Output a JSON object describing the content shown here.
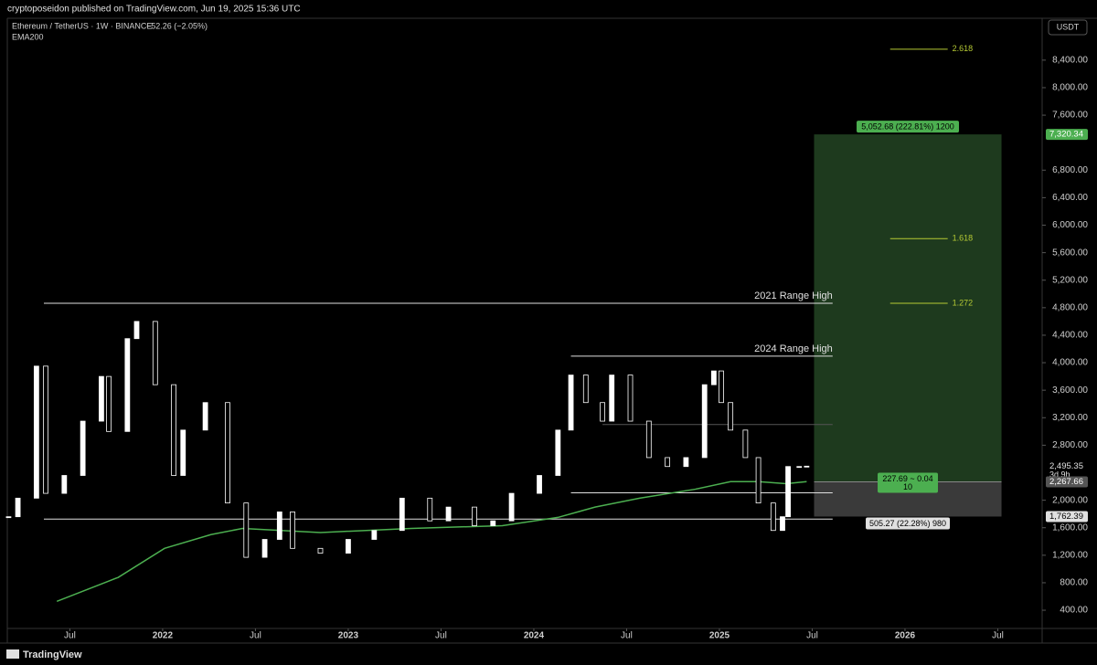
{
  "header": {
    "publisher": "cryptoposeidon published on TradingView.com, Jun 19, 2025 15:36 UTC",
    "symbol": "Ethereum / TetherUS · 1W · BINANCE",
    "change": "−52.26 (−2.05%)",
    "indicator": "EMA200",
    "currency": "USDT",
    "footer": "TradingView"
  },
  "chart_data": {
    "type": "candlestick",
    "x": [
      2021.17,
      2021.22,
      2021.32,
      2021.37,
      2021.47,
      2021.57,
      2021.67,
      2021.71,
      2021.81,
      2021.86,
      2021.96,
      2022.06,
      2022.11,
      2022.23,
      2022.35,
      2022.45,
      2022.55,
      2022.63,
      2022.7,
      2022.85,
      2023.0,
      2023.14,
      2023.29,
      2023.44,
      2023.54,
      2023.68,
      2023.78,
      2023.88,
      2024.03,
      2024.13,
      2024.2,
      2024.28,
      2024.37,
      2024.42,
      2024.52,
      2024.62,
      2024.72,
      2024.82,
      2024.92,
      2024.97,
      2025.01,
      2025.06,
      2025.14,
      2025.21,
      2025.29,
      2025.34,
      2025.37,
      2025.43,
      2025.47
    ],
    "close": [
      1760,
      2030,
      3950,
      2100,
      2360,
      3150,
      3800,
      3000,
      4350,
      4600,
      3680,
      2360,
      3020,
      3420,
      1960,
      1170,
      1430,
      1830,
      1300,
      1230,
      1430,
      1560,
      2030,
      1700,
      1900,
      1630,
      1700,
      2100,
      2360,
      3020,
      3820,
      3420,
      3150,
      3820,
      3150,
      2620,
      2490,
      2620,
      3680,
      3880,
      3420,
      3020,
      2620,
      1960,
      1560,
      1760,
      2490,
      2490,
      2495.35
    ],
    "up_color": "#ffffff",
    "down_color": "#000000",
    "ema": {
      "name": "EMA200",
      "color": "#4caf50",
      "x": [
        2021.43,
        2021.76,
        2022.01,
        2022.26,
        2022.43,
        2022.85,
        2023.34,
        2023.83,
        2024.13,
        2024.33,
        2024.57,
        2024.87,
        2025.06,
        2025.21,
        2025.36,
        2025.47
      ],
      "values": [
        530,
        877,
        1300,
        1500,
        1590,
        1530,
        1590,
        1630,
        1750,
        1900,
        2030,
        2160,
        2270,
        2270,
        2240,
        2270
      ]
    },
    "levels": [
      {
        "label": "2021 Range High",
        "value": 4864,
        "x": [
          2021.36,
          2025.61
        ]
      },
      {
        "label": "2024 Range High",
        "value": 4095,
        "x": [
          2024.2,
          2025.61
        ]
      },
      {
        "value": 3100,
        "x": [
          2024.37,
          2025.61
        ]
      },
      {
        "value": 2108,
        "x": [
          2024.2,
          2025.61
        ]
      },
      {
        "value": 1725,
        "x": [
          2021.36,
          2025.61
        ]
      }
    ],
    "fib": {
      "x": [
        2025.92,
        2026.23
      ],
      "color": "#b5c934",
      "lines": [
        {
          "label": "2.618",
          "value": 8559
        },
        {
          "label": "1.618",
          "value": 5804
        },
        {
          "label": "1.272",
          "value": 4864
        }
      ]
    },
    "position": {
      "x": [
        2025.51,
        2026.52
      ],
      "entry": 2267.66,
      "target": 7320.34,
      "stop": 1762.39,
      "target_label": "5,052.68 (222.81%) 1200",
      "center_label": [
        "227.69 ~ 0.04",
        "10"
      ],
      "stop_label": "505.27 (22.28%) 980"
    },
    "price_labels": [
      {
        "value": 7320.34,
        "label": "7,320.34",
        "color": "#4caf50"
      },
      {
        "value": 2495.35,
        "label": "2,495.35",
        "sub": "3d 9h",
        "color": "#000000"
      },
      {
        "value": 2267.66,
        "label": "2,267.66",
        "color": "#555555"
      },
      {
        "value": 1762.39,
        "label": "1,762.39",
        "color": "#e0e0e0"
      }
    ],
    "xlim": [
      2021.163,
      2026.739
    ],
    "ylim": [
      135,
      9009
    ],
    "xticks": [
      {
        "value": 2021.5,
        "label": "Jul"
      },
      2022,
      {
        "value": 2022.5,
        "label": "Jul"
      },
      2023,
      {
        "value": 2023.5,
        "label": "Jul"
      },
      2024,
      {
        "value": 2024.5,
        "label": "Jul"
      },
      2025,
      {
        "value": 2025.5,
        "label": "Jul"
      },
      2026,
      {
        "value": 2026.5,
        "label": "Jul"
      }
    ],
    "yticks": [
      {
        "value": 8400,
        "label": "8,400.00"
      },
      {
        "value": 8000,
        "label": "8,000.00"
      },
      {
        "value": 7600,
        "label": "7,600.00"
      },
      {
        "value": 6800,
        "label": "6,800.00"
      },
      {
        "value": 6400,
        "label": "6,400.00"
      },
      {
        "value": 6000,
        "label": "6,000.00"
      },
      {
        "value": 5600,
        "label": "5,600.00"
      },
      {
        "value": 5200,
        "label": "5,200.00"
      },
      {
        "value": 4800,
        "label": "4,800.00"
      },
      {
        "value": 4400,
        "label": "4,400.00"
      },
      {
        "value": 4000,
        "label": "4,000.00"
      },
      {
        "value": 3600,
        "label": "3,600.00"
      },
      {
        "value": 3200,
        "label": "3,200.00"
      },
      {
        "value": 2800,
        "label": "2,800.00"
      },
      {
        "value": 2000,
        "label": "2,000.00"
      },
      {
        "value": 1600,
        "label": "1,600.00"
      },
      {
        "value": 1200,
        "label": "1,200.00"
      },
      {
        "value": 800,
        "label": "800.00"
      },
      {
        "value": 400,
        "label": "400.00"
      }
    ]
  }
}
